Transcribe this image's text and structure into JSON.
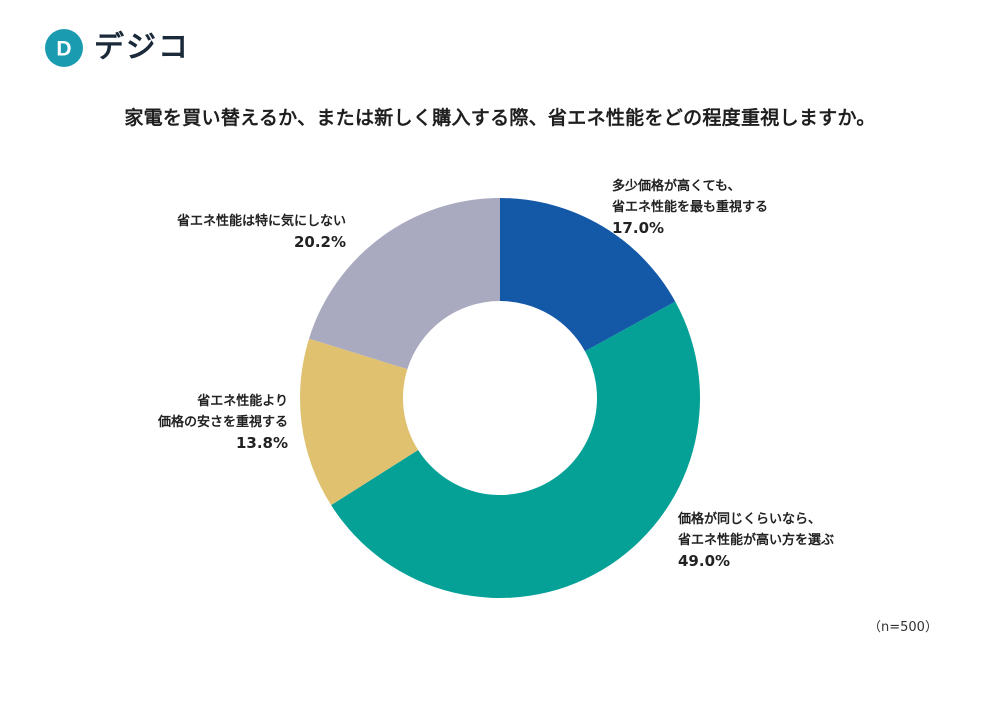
{
  "brand": {
    "name": "デジコ",
    "mark_letter": "D",
    "color": "#1a9bb0"
  },
  "title": "家電を買い替えるか、または新しく購入する際、省エネ性能をどの程度重視しますか。",
  "note": "（n=500）",
  "chart_data": {
    "type": "pie",
    "donut": true,
    "title": "家電を買い替えるか、または新しく購入する際、省エネ性能をどの程度重視しますか。",
    "unit": "%",
    "n": 500,
    "start": "12 o'clock",
    "direction": "clockwise",
    "slices": [
      {
        "label_lines": [
          "多少価格が高くても、",
          "省エネ性能を最も重視する"
        ],
        "value": 17.0,
        "value_text": "17.0%",
        "color": "#1458a8",
        "label_side": "right"
      },
      {
        "label_lines": [
          "価格が同じくらいなら、",
          "省エネ性能が高い方を選ぶ"
        ],
        "value": 49.0,
        "value_text": "49.0%",
        "color": "#05a096",
        "label_side": "right"
      },
      {
        "label_lines": [
          "省エネ性能より",
          "価格の安さを重視する"
        ],
        "value": 13.8,
        "value_text": "13.8%",
        "color": "#dfc170",
        "label_side": "left"
      },
      {
        "label_lines": [
          "省エネ性能は特に気にしない"
        ],
        "value": 20.2,
        "value_text": "20.2%",
        "color": "#a9aac0",
        "label_side": "left"
      }
    ]
  }
}
